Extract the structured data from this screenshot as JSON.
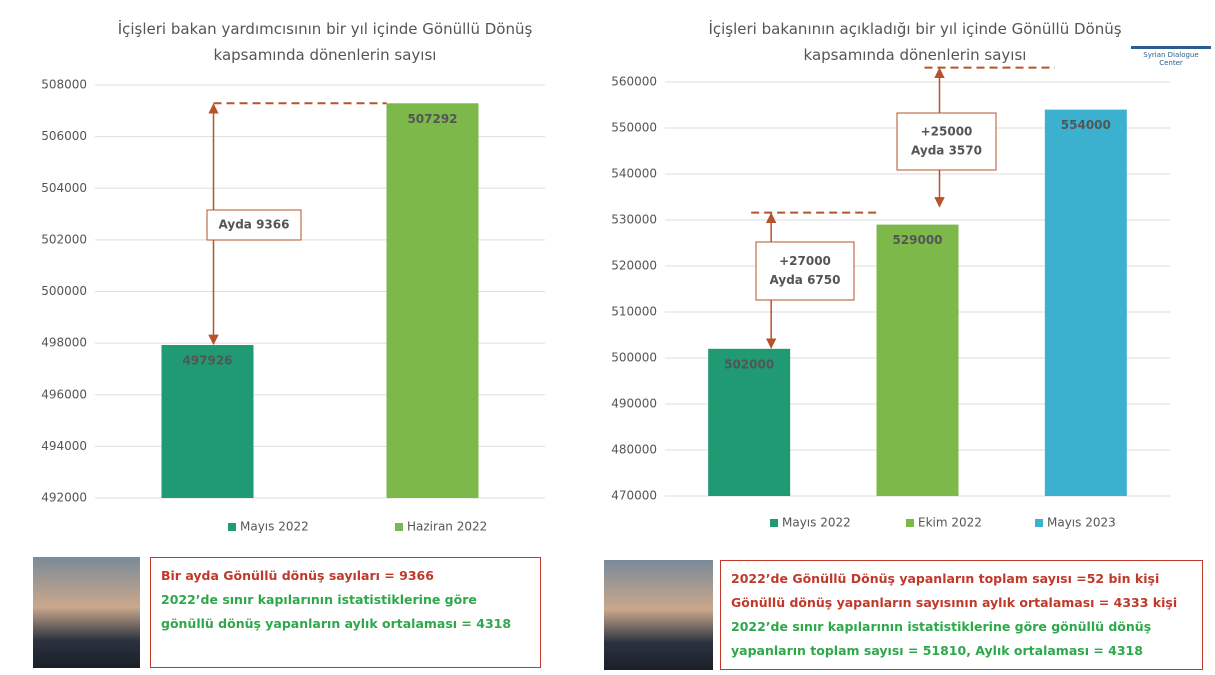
{
  "chart_data": [
    {
      "type": "bar",
      "title": "İçişleri bakan yardımcısının bir yıl içinde Gönüllü Dönüş kapsamında dönenlerin sayısı",
      "categories": [
        "Mayıs 2022",
        "Haziran 2022"
      ],
      "values": [
        497926,
        507292
      ],
      "colors": [
        "#1f9a72",
        "#7cb84a"
      ],
      "ylim": [
        492000,
        508000
      ],
      "yticks": [
        492000,
        494000,
        496000,
        498000,
        500000,
        502000,
        504000,
        506000,
        508000
      ],
      "grid": true,
      "annotations": [
        "Ayda 9366"
      ]
    },
    {
      "type": "bar",
      "title": "İçişleri bakanının açıkladığı bir yıl içinde Gönüllü Dönüş kapsamında dönenlerin sayısı",
      "categories": [
        "Mayıs 2022",
        "Ekim 2022",
        "Mayıs 2023"
      ],
      "values": [
        502000,
        529000,
        554000
      ],
      "colors": [
        "#1f9a72",
        "#7cb84a",
        "#3bb0cf"
      ],
      "ylim": [
        470000,
        560000
      ],
      "yticks": [
        470000,
        480000,
        490000,
        500000,
        510000,
        520000,
        530000,
        540000,
        550000,
        560000
      ],
      "grid": true,
      "annotations": [
        "+27000",
        "Ayda 6750",
        "+25000",
        "Ayda 3570"
      ]
    }
  ],
  "logo": "Syrian Dialogue Center",
  "notes": [
    [
      {
        "text": "Bir ayda Gönüllü dönüş sayıları = 9366",
        "color": "#c0392b"
      },
      {
        "text": "2022’de sınır kapılarının istatistiklerine göre gönüllü dönüş yapanların aylık ortalaması = 4318",
        "color": "#2ea84a"
      }
    ],
    [
      {
        "text": "2022’de Gönüllü Dönüş yapanların toplam sayısı =52 bin kişi",
        "color": "#c0392b"
      },
      {
        "text": "Gönüllü dönüş yapanların sayısının aylık ortalaması = 4333 kişi",
        "color": "#c0392b"
      },
      {
        "text": "2022’de sınır kapılarının istatistiklerine göre gönüllü dönüş yapanların toplam sayısı = 51810,  Aylık ortalaması = 4318",
        "color": "#2ea84a"
      }
    ]
  ]
}
